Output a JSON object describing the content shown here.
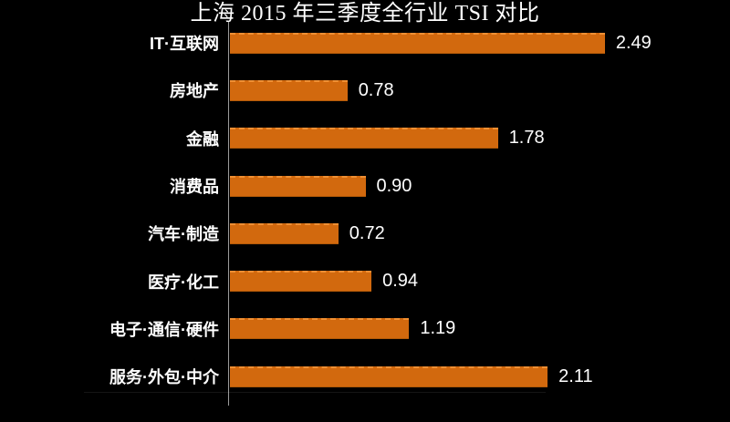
{
  "title": "上海 2015 年三季度全行业 TSI 对比",
  "chart_data": {
    "type": "bar",
    "orientation": "horizontal",
    "title": "上海 2015 年三季度全行业 TSI 对比",
    "categories": [
      "IT·互联网",
      "房地产",
      "金融",
      "消费品",
      "汽车·制造",
      "医疗·化工",
      "电子·通信·硬件",
      "服务·外包·中介"
    ],
    "values": [
      2.49,
      0.78,
      1.78,
      0.9,
      0.72,
      0.94,
      1.19,
      2.11
    ],
    "value_labels": [
      "2.49",
      "0.78",
      "1.78",
      "0.90",
      "0.72",
      "0.94",
      "1.19",
      "2.11"
    ],
    "xlabel": "",
    "ylabel": "",
    "xlim": [
      0,
      2.6
    ],
    "grid": false,
    "legend": "none",
    "colors": {
      "background": "#000000",
      "bar": "#d2690e",
      "bar_top_highlight": "#ef8f33",
      "text": "#ffffff",
      "axis_line": "#9b9b9b"
    }
  }
}
